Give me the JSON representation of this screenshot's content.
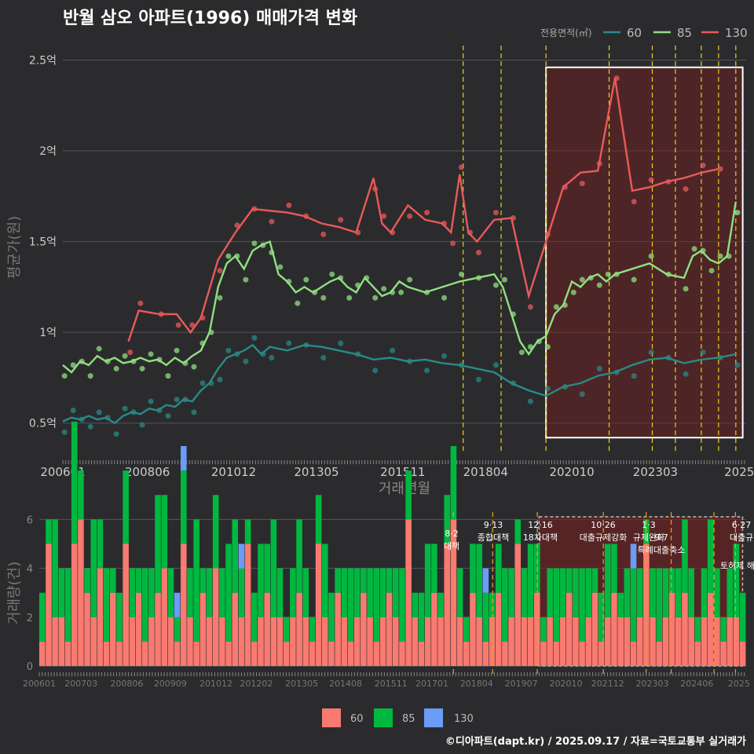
{
  "title": "반월 삼오 아파트(1996) 매매가격 변화",
  "footer": "©디아파트(dapt.kr) / 2025.09.17 / 자료=국토교통부 실거래가",
  "legend_title": "전용면적(㎡)",
  "colors": {
    "bg": "#2b2b2d",
    "grid": "#55555a",
    "s60": "#2a8a88",
    "s85": "#90e080",
    "s130": "#e85a5a",
    "bar60": "#f87a70",
    "bar85": "#00b840",
    "bar130": "#6a9cf8",
    "policy": "#e8d020",
    "policyBar": "#e8a020",
    "shade": "#7a1f1f",
    "box": "#ffffff",
    "outlier": "#e01010"
  },
  "chart_data": [
    {
      "type": "line",
      "title": "반월 삼오 아파트(1996) 매매가격 변화",
      "xlabel": "거래년월",
      "ylabel": "평균가(원)",
      "ylim": [
        0.33,
        2.58
      ],
      "x_ticks": [
        "200601",
        "200806",
        "201012",
        "201305",
        "201511",
        "201804",
        "202010",
        "202303",
        "2025"
      ],
      "y_ticks": [
        "0.5억",
        "1억",
        "1.5억",
        "2억",
        "2.5억"
      ],
      "y_tick_values": [
        0.5,
        1.0,
        1.5,
        2.0,
        2.5
      ],
      "legend_placement": "top-right",
      "policy_lines": [
        2017.6,
        2018.7,
        2020.0,
        2021.83,
        2023.08,
        2023.75,
        2024.5,
        2025.0,
        2025.5
      ],
      "highlight_range": [
        2020.0,
        2025.7
      ],
      "series": [
        {
          "name": "60",
          "x": [
            2006.0,
            2006.25,
            2006.5,
            2006.75,
            2007.0,
            2007.25,
            2007.5,
            2007.75,
            2008.0,
            2008.25,
            2008.5,
            2008.75,
            2009.0,
            2009.25,
            2009.5,
            2009.75,
            2010.0,
            2010.25,
            2010.5,
            2010.75,
            2011.0,
            2011.25,
            2011.5,
            2011.75,
            2012.0,
            2012.5,
            2013.0,
            2013.5,
            2014.0,
            2014.5,
            2015.0,
            2015.5,
            2016.0,
            2016.5,
            2017.0,
            2017.5,
            2018.0,
            2018.5,
            2019.0,
            2019.5,
            2020.0,
            2020.5,
            2021.0,
            2021.5,
            2022.0,
            2022.5,
            2023.0,
            2023.5,
            2024.0,
            2024.5,
            2025.0,
            2025.5
          ],
          "values": [
            0.51,
            0.53,
            0.52,
            0.54,
            0.52,
            0.53,
            0.5,
            0.54,
            0.56,
            0.55,
            0.58,
            0.57,
            0.6,
            0.59,
            0.63,
            0.62,
            0.68,
            0.72,
            0.8,
            0.86,
            0.88,
            0.9,
            0.93,
            0.88,
            0.92,
            0.9,
            0.93,
            0.92,
            0.9,
            0.88,
            0.85,
            0.86,
            0.84,
            0.85,
            0.83,
            0.82,
            0.8,
            0.78,
            0.72,
            0.68,
            0.65,
            0.7,
            0.72,
            0.76,
            0.78,
            0.82,
            0.85,
            0.86,
            0.83,
            0.85,
            0.86,
            0.88
          ]
        },
        {
          "name": "85",
          "x": [
            2006.0,
            2006.25,
            2006.5,
            2006.75,
            2007.0,
            2007.25,
            2007.5,
            2007.75,
            2008.0,
            2008.25,
            2008.5,
            2008.75,
            2009.0,
            2009.25,
            2009.5,
            2009.75,
            2010.0,
            2010.25,
            2010.5,
            2010.75,
            2011.0,
            2011.25,
            2011.5,
            2011.75,
            2012.0,
            2012.25,
            2012.5,
            2012.75,
            2013.0,
            2013.25,
            2013.5,
            2013.75,
            2014.0,
            2014.25,
            2014.5,
            2014.75,
            2015.0,
            2015.25,
            2015.5,
            2015.75,
            2016.0,
            2016.5,
            2017.0,
            2017.5,
            2018.0,
            2018.5,
            2018.75,
            2019.0,
            2019.25,
            2019.5,
            2019.75,
            2020.0,
            2020.25,
            2020.5,
            2020.75,
            2021.0,
            2021.25,
            2021.5,
            2021.75,
            2022.0,
            2022.5,
            2023.0,
            2023.5,
            2024.0,
            2024.25,
            2024.5,
            2024.75,
            2025.0,
            2025.25,
            2025.5
          ],
          "values": [
            0.82,
            0.78,
            0.84,
            0.82,
            0.87,
            0.84,
            0.86,
            0.83,
            0.84,
            0.86,
            0.84,
            0.85,
            0.82,
            0.86,
            0.83,
            0.87,
            0.9,
            1.0,
            1.25,
            1.38,
            1.42,
            1.35,
            1.45,
            1.48,
            1.5,
            1.32,
            1.28,
            1.22,
            1.25,
            1.22,
            1.25,
            1.28,
            1.3,
            1.25,
            1.22,
            1.3,
            1.25,
            1.2,
            1.22,
            1.28,
            1.25,
            1.22,
            1.25,
            1.28,
            1.3,
            1.32,
            1.25,
            1.1,
            0.95,
            0.88,
            0.95,
            0.98,
            1.1,
            1.15,
            1.28,
            1.25,
            1.3,
            1.32,
            1.28,
            1.32,
            1.35,
            1.38,
            1.32,
            1.3,
            1.42,
            1.45,
            1.4,
            1.38,
            1.42,
            1.72
          ]
        },
        {
          "name": "130",
          "x": [
            2007.9,
            2008.2,
            2008.8,
            2009.3,
            2009.7,
            2010.0,
            2010.5,
            2011.0,
            2011.5,
            2012.0,
            2012.5,
            2013.0,
            2013.5,
            2014.0,
            2014.5,
            2015.0,
            2015.25,
            2015.5,
            2016.0,
            2016.5,
            2017.0,
            2017.25,
            2017.5,
            2017.75,
            2018.0,
            2018.5,
            2019.0,
            2019.5,
            2020.0,
            2020.5,
            2021.0,
            2021.5,
            2022.0,
            2022.5,
            2023.0,
            2023.5,
            2024.0,
            2024.5,
            2025.0
          ],
          "values": [
            0.95,
            1.12,
            1.1,
            1.1,
            1.0,
            1.08,
            1.4,
            1.55,
            1.68,
            1.67,
            1.66,
            1.64,
            1.6,
            1.58,
            1.55,
            1.85,
            1.6,
            1.55,
            1.7,
            1.62,
            1.6,
            1.55,
            1.87,
            1.55,
            1.5,
            1.62,
            1.63,
            1.2,
            1.5,
            1.8,
            1.88,
            1.89,
            2.4,
            1.78,
            1.8,
            1.83,
            1.85,
            1.88,
            1.9
          ]
        }
      ]
    },
    {
      "type": "bar",
      "ylabel": "거래량(건)",
      "ylim": [
        0,
        6.3
      ],
      "y_ticks": [
        "0",
        "2",
        "4",
        "6"
      ],
      "y_tick_values": [
        0,
        2,
        4,
        6
      ],
      "x_ticks": [
        "200601",
        "200703",
        "200806",
        "200909",
        "201012",
        "201202",
        "201305",
        "201408",
        "201511",
        "201701",
        "201804",
        "201907",
        "202010",
        "202112",
        "202303",
        "202406",
        "2025"
      ],
      "policies": [
        {
          "date": "8·2",
          "label": "대책",
          "x": 2017.6
        },
        {
          "date": "9·13",
          "label": "종합대책",
          "x": 2018.7
        },
        {
          "date": "12·16",
          "label": "18차대책",
          "x": 2019.95
        },
        {
          "date": "10·26",
          "label": "대출규제강화",
          "x": 2021.8
        },
        {
          "date": "1·3",
          "label": "규제완화",
          "x": 2023.0
        },
        {
          "date": "9·7",
          "label": "특례대출축소",
          "x": 2023.7
        },
        {
          "date": "",
          "label": "토허제 해제",
          "x": 2024.9
        },
        {
          "date": "6·27",
          "label": "대출규",
          "x": 2025.5
        }
      ],
      "series": [
        {
          "name": "60",
          "values": [
            1,
            5,
            2,
            2,
            1,
            5,
            6,
            3,
            2,
            4,
            1,
            3,
            1,
            5,
            2,
            3,
            1,
            2,
            3,
            4,
            2,
            1,
            5,
            2,
            1,
            3,
            2,
            4,
            2,
            1,
            3,
            2,
            5,
            1,
            2,
            3,
            2,
            2,
            1,
            2,
            3,
            2,
            1,
            5,
            2,
            1,
            3,
            2,
            1,
            2,
            3,
            2,
            1,
            2,
            3,
            2,
            1,
            6,
            2,
            1,
            2,
            3,
            2,
            5,
            6,
            2,
            1,
            3,
            2,
            1,
            2,
            3,
            1,
            2,
            5,
            2,
            2,
            3,
            1,
            2,
            1,
            2,
            3,
            2,
            1,
            2,
            3,
            1,
            2,
            3,
            2,
            2,
            1,
            2,
            5,
            2,
            1,
            2,
            3,
            2,
            3,
            2,
            1,
            2,
            3,
            2,
            1,
            2,
            2,
            1
          ]
        },
        {
          "name": "85",
          "values": [
            2,
            1,
            4,
            2,
            3,
            5,
            2,
            1,
            4,
            2,
            3,
            1,
            2,
            3,
            2,
            1,
            3,
            2,
            4,
            3,
            2,
            1,
            3,
            2,
            5,
            1,
            2,
            3,
            2,
            4,
            3,
            2,
            1,
            2,
            3,
            2,
            4,
            2,
            1,
            2,
            3,
            2,
            1,
            2,
            3,
            2,
            1,
            2,
            3,
            2,
            1,
            2,
            3,
            2,
            1,
            2,
            3,
            2,
            1,
            2,
            3,
            2,
            1,
            2,
            3,
            2,
            1,
            2,
            3,
            2,
            1,
            2,
            3,
            2,
            1,
            2,
            3,
            2,
            1,
            2,
            3,
            2,
            1,
            2,
            3,
            2,
            1,
            2,
            3,
            2,
            1,
            2,
            3,
            2,
            1,
            2,
            3,
            2,
            1,
            2,
            3,
            2,
            1,
            2,
            3,
            2,
            1,
            2,
            3,
            2
          ]
        },
        {
          "name": "130",
          "values": [
            0,
            0,
            0,
            0,
            0,
            0,
            0,
            0,
            0,
            0,
            0,
            0,
            0,
            0,
            0,
            0,
            0,
            0,
            0,
            0,
            0,
            1,
            1,
            0,
            0,
            0,
            0,
            0,
            0,
            0,
            0,
            1,
            0,
            0,
            0,
            0,
            0,
            0,
            0,
            0,
            0,
            0,
            0,
            0,
            0,
            0,
            0,
            0,
            0,
            0,
            0,
            0,
            0,
            0,
            0,
            0,
            0,
            0,
            0,
            0,
            0,
            0,
            0,
            0,
            0,
            0,
            0,
            0,
            0,
            1,
            0,
            0,
            0,
            0,
            0,
            0,
            0,
            0,
            0,
            0,
            0,
            0,
            0,
            0,
            0,
            0,
            0,
            0,
            0,
            0,
            0,
            0,
            1,
            0,
            0,
            0,
            0,
            0,
            0,
            0,
            0,
            0,
            0,
            0,
            0,
            0,
            0,
            0,
            0,
            0
          ]
        }
      ]
    }
  ]
}
